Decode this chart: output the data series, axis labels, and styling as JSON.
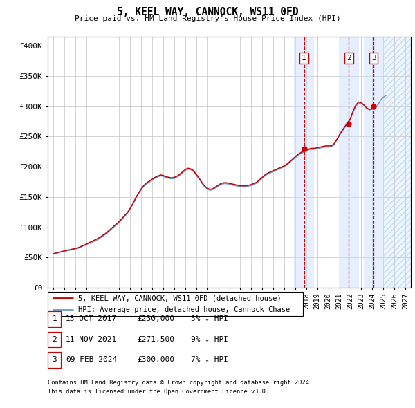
{
  "title": "5, KEEL WAY, CANNOCK, WS11 0FD",
  "subtitle": "Price paid vs. HM Land Registry’s House Price Index (HPI)",
  "ylabel_ticks": [
    "£0",
    "£50K",
    "£100K",
    "£150K",
    "£200K",
    "£250K",
    "£300K",
    "£350K",
    "£400K"
  ],
  "ytick_values": [
    0,
    50000,
    100000,
    150000,
    200000,
    250000,
    300000,
    350000,
    400000
  ],
  "ylim": [
    0,
    415000
  ],
  "xlim_start": 1994.5,
  "xlim_end": 2027.5,
  "hpi_color": "#6699cc",
  "price_color": "#cc0000",
  "legend_label_price": "5, KEEL WAY, CANNOCK, WS11 0FD (detached house)",
  "legend_label_hpi": "HPI: Average price, detached house, Cannock Chase",
  "sales": [
    {
      "num": 1,
      "date": "13-OCT-2017",
      "price": 230000,
      "pct": "3%",
      "dir": "↓",
      "year": 2017.79
    },
    {
      "num": 2,
      "date": "11-NOV-2021",
      "price": 271500,
      "pct": "9%",
      "dir": "↓",
      "year": 2021.87
    },
    {
      "num": 3,
      "date": "09-FEB-2024",
      "price": 300000,
      "pct": "7%",
      "dir": "↓",
      "year": 2024.12
    }
  ],
  "footnote1": "Contains HM Land Registry data © Crown copyright and database right 2024.",
  "footnote2": "This data is licensed under the Open Government Licence v3.0.",
  "hpi_data": [
    [
      1995.0,
      56000
    ],
    [
      1995.25,
      57000
    ],
    [
      1995.5,
      58000
    ],
    [
      1995.75,
      59000
    ],
    [
      1996.0,
      60000
    ],
    [
      1996.25,
      61000
    ],
    [
      1996.5,
      62000
    ],
    [
      1996.75,
      63000
    ],
    [
      1997.0,
      64000
    ],
    [
      1997.25,
      65000
    ],
    [
      1997.5,
      67000
    ],
    [
      1997.75,
      69000
    ],
    [
      1998.0,
      71000
    ],
    [
      1998.25,
      73000
    ],
    [
      1998.5,
      75000
    ],
    [
      1998.75,
      77000
    ],
    [
      1999.0,
      79000
    ],
    [
      1999.25,
      82000
    ],
    [
      1999.5,
      85000
    ],
    [
      1999.75,
      88000
    ],
    [
      2000.0,
      92000
    ],
    [
      2000.25,
      96000
    ],
    [
      2000.5,
      100000
    ],
    [
      2000.75,
      104000
    ],
    [
      2001.0,
      108000
    ],
    [
      2001.25,
      113000
    ],
    [
      2001.5,
      118000
    ],
    [
      2001.75,
      123000
    ],
    [
      2002.0,
      130000
    ],
    [
      2002.25,
      138000
    ],
    [
      2002.5,
      147000
    ],
    [
      2002.75,
      155000
    ],
    [
      2003.0,
      162000
    ],
    [
      2003.25,
      168000
    ],
    [
      2003.5,
      172000
    ],
    [
      2003.75,
      175000
    ],
    [
      2004.0,
      178000
    ],
    [
      2004.25,
      181000
    ],
    [
      2004.5,
      183000
    ],
    [
      2004.75,
      185000
    ],
    [
      2005.0,
      184000
    ],
    [
      2005.25,
      182000
    ],
    [
      2005.5,
      181000
    ],
    [
      2005.75,
      180000
    ],
    [
      2006.0,
      181000
    ],
    [
      2006.25,
      183000
    ],
    [
      2006.5,
      186000
    ],
    [
      2006.75,
      190000
    ],
    [
      2007.0,
      194000
    ],
    [
      2007.25,
      196000
    ],
    [
      2007.5,
      195000
    ],
    [
      2007.75,
      192000
    ],
    [
      2008.0,
      186000
    ],
    [
      2008.25,
      180000
    ],
    [
      2008.5,
      173000
    ],
    [
      2008.75,
      167000
    ],
    [
      2009.0,
      163000
    ],
    [
      2009.25,
      161000
    ],
    [
      2009.5,
      162000
    ],
    [
      2009.75,
      165000
    ],
    [
      2010.0,
      168000
    ],
    [
      2010.25,
      171000
    ],
    [
      2010.5,
      172000
    ],
    [
      2010.75,
      172000
    ],
    [
      2011.0,
      171000
    ],
    [
      2011.25,
      170000
    ],
    [
      2011.5,
      169000
    ],
    [
      2011.75,
      168000
    ],
    [
      2012.0,
      167000
    ],
    [
      2012.25,
      167000
    ],
    [
      2012.5,
      167000
    ],
    [
      2012.75,
      168000
    ],
    [
      2013.0,
      169000
    ],
    [
      2013.25,
      171000
    ],
    [
      2013.5,
      173000
    ],
    [
      2013.75,
      177000
    ],
    [
      2014.0,
      181000
    ],
    [
      2014.25,
      185000
    ],
    [
      2014.5,
      188000
    ],
    [
      2014.75,
      190000
    ],
    [
      2015.0,
      192000
    ],
    [
      2015.25,
      194000
    ],
    [
      2015.5,
      196000
    ],
    [
      2015.75,
      198000
    ],
    [
      2016.0,
      200000
    ],
    [
      2016.25,
      203000
    ],
    [
      2016.5,
      207000
    ],
    [
      2016.75,
      211000
    ],
    [
      2017.0,
      215000
    ],
    [
      2017.25,
      219000
    ],
    [
      2017.5,
      222000
    ],
    [
      2017.75,
      224000
    ],
    [
      2018.0,
      226000
    ],
    [
      2018.25,
      228000
    ],
    [
      2018.5,
      229000
    ],
    [
      2018.75,
      229000
    ],
    [
      2019.0,
      230000
    ],
    [
      2019.25,
      231000
    ],
    [
      2019.5,
      232000
    ],
    [
      2019.75,
      233000
    ],
    [
      2020.0,
      233000
    ],
    [
      2020.25,
      233000
    ],
    [
      2020.5,
      236000
    ],
    [
      2020.75,
      243000
    ],
    [
      2021.0,
      251000
    ],
    [
      2021.25,
      258000
    ],
    [
      2021.5,
      265000
    ],
    [
      2021.75,
      271000
    ],
    [
      2022.0,
      278000
    ],
    [
      2022.25,
      290000
    ],
    [
      2022.5,
      300000
    ],
    [
      2022.75,
      305000
    ],
    [
      2023.0,
      305000
    ],
    [
      2023.25,
      301000
    ],
    [
      2023.5,
      296000
    ],
    [
      2023.75,
      294000
    ],
    [
      2024.0,
      295000
    ],
    [
      2024.25,
      298000
    ],
    [
      2024.5,
      302000
    ],
    [
      2024.75,
      310000
    ],
    [
      2025.0,
      315000
    ],
    [
      2025.25,
      318000
    ]
  ],
  "price_data": [
    [
      1995.0,
      56000
    ],
    [
      1995.25,
      57200
    ],
    [
      1995.5,
      58400
    ],
    [
      1995.75,
      59600
    ],
    [
      1996.0,
      60800
    ],
    [
      1996.25,
      61800
    ],
    [
      1996.5,
      62800
    ],
    [
      1996.75,
      63800
    ],
    [
      1997.0,
      64800
    ],
    [
      1997.25,
      66000
    ],
    [
      1997.5,
      68000
    ],
    [
      1997.75,
      70000
    ],
    [
      1998.0,
      72000
    ],
    [
      1998.25,
      74200
    ],
    [
      1998.5,
      76400
    ],
    [
      1998.75,
      78600
    ],
    [
      1999.0,
      80800
    ],
    [
      1999.25,
      83500
    ],
    [
      1999.5,
      86500
    ],
    [
      1999.75,
      89500
    ],
    [
      2000.0,
      93500
    ],
    [
      2000.25,
      97500
    ],
    [
      2000.5,
      101500
    ],
    [
      2000.75,
      105500
    ],
    [
      2001.0,
      109500
    ],
    [
      2001.25,
      114500
    ],
    [
      2001.5,
      119500
    ],
    [
      2001.75,
      124500
    ],
    [
      2002.0,
      131500
    ],
    [
      2002.25,
      139500
    ],
    [
      2002.5,
      148500
    ],
    [
      2002.75,
      156500
    ],
    [
      2003.0,
      163500
    ],
    [
      2003.25,
      169500
    ],
    [
      2003.5,
      173500
    ],
    [
      2003.75,
      176500
    ],
    [
      2004.0,
      179500
    ],
    [
      2004.25,
      182500
    ],
    [
      2004.5,
      184500
    ],
    [
      2004.75,
      186500
    ],
    [
      2005.0,
      185500
    ],
    [
      2005.25,
      183500
    ],
    [
      2005.5,
      182500
    ],
    [
      2005.75,
      181500
    ],
    [
      2006.0,
      182500
    ],
    [
      2006.25,
      184500
    ],
    [
      2006.5,
      187500
    ],
    [
      2006.75,
      191500
    ],
    [
      2007.0,
      195500
    ],
    [
      2007.25,
      197500
    ],
    [
      2007.5,
      196500
    ],
    [
      2007.75,
      193500
    ],
    [
      2008.0,
      187500
    ],
    [
      2008.25,
      181500
    ],
    [
      2008.5,
      174500
    ],
    [
      2008.75,
      168500
    ],
    [
      2009.0,
      164500
    ],
    [
      2009.25,
      162500
    ],
    [
      2009.5,
      163500
    ],
    [
      2009.75,
      166500
    ],
    [
      2010.0,
      169500
    ],
    [
      2010.25,
      172500
    ],
    [
      2010.5,
      173500
    ],
    [
      2010.75,
      173500
    ],
    [
      2011.0,
      172500
    ],
    [
      2011.25,
      171500
    ],
    [
      2011.5,
      170500
    ],
    [
      2011.75,
      169500
    ],
    [
      2012.0,
      168500
    ],
    [
      2012.25,
      168500
    ],
    [
      2012.5,
      168500
    ],
    [
      2012.75,
      169500
    ],
    [
      2013.0,
      170500
    ],
    [
      2013.25,
      172500
    ],
    [
      2013.5,
      174500
    ],
    [
      2013.75,
      178500
    ],
    [
      2014.0,
      182500
    ],
    [
      2014.25,
      186500
    ],
    [
      2014.5,
      189500
    ],
    [
      2014.75,
      191500
    ],
    [
      2015.0,
      193500
    ],
    [
      2015.25,
      195500
    ],
    [
      2015.5,
      197500
    ],
    [
      2015.75,
      199500
    ],
    [
      2016.0,
      201500
    ],
    [
      2016.25,
      204500
    ],
    [
      2016.5,
      208500
    ],
    [
      2016.75,
      212500
    ],
    [
      2017.0,
      216500
    ],
    [
      2017.25,
      220500
    ],
    [
      2017.5,
      223500
    ],
    [
      2017.75,
      225500
    ],
    [
      2018.0,
      227500
    ],
    [
      2018.25,
      229500
    ],
    [
      2018.5,
      230500
    ],
    [
      2018.75,
      230500
    ],
    [
      2019.0,
      231500
    ],
    [
      2019.25,
      232500
    ],
    [
      2019.5,
      233500
    ],
    [
      2019.75,
      234500
    ],
    [
      2020.0,
      234500
    ],
    [
      2020.25,
      234500
    ],
    [
      2020.5,
      237500
    ],
    [
      2020.75,
      244500
    ],
    [
      2021.0,
      252500
    ],
    [
      2021.25,
      259500
    ],
    [
      2021.5,
      266500
    ],
    [
      2021.75,
      272500
    ],
    [
      2022.0,
      279500
    ],
    [
      2022.25,
      292000
    ],
    [
      2022.5,
      302000
    ],
    [
      2022.75,
      307000
    ],
    [
      2023.0,
      306000
    ],
    [
      2023.25,
      302000
    ],
    [
      2023.5,
      297000
    ],
    [
      2023.75,
      295000
    ],
    [
      2024.0,
      296000
    ]
  ],
  "xtick_years": [
    1995,
    1996,
    1997,
    1998,
    1999,
    2000,
    2001,
    2002,
    2003,
    2004,
    2005,
    2006,
    2007,
    2008,
    2009,
    2010,
    2011,
    2012,
    2013,
    2014,
    2015,
    2016,
    2017,
    2018,
    2019,
    2020,
    2021,
    2022,
    2023,
    2024,
    2025,
    2026,
    2027
  ],
  "hatch_start": 2025.0,
  "grid_color": "#cccccc",
  "sale_span_half": 0.9,
  "sale_span_color": "#cce0ff",
  "sale_span_alpha": 0.5
}
